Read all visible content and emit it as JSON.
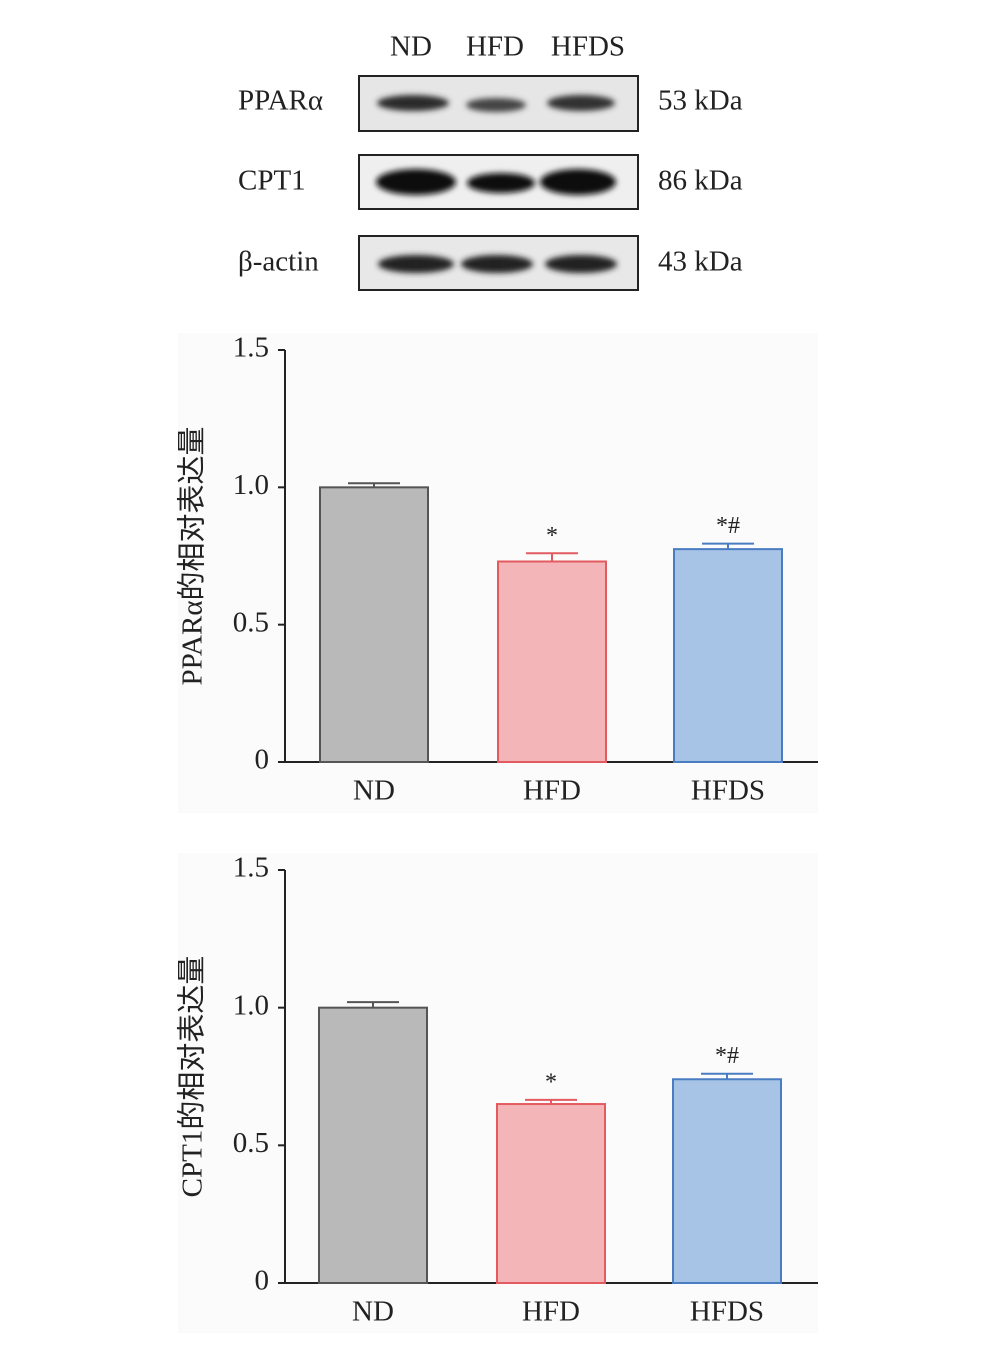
{
  "blot": {
    "lanes": [
      "ND",
      "HFD",
      "HFDS"
    ],
    "rows": [
      {
        "label": "PPARα",
        "size": "53 kDa"
      },
      {
        "label": "CPT1",
        "size": "86 kDa"
      },
      {
        "label": "β-actin",
        "size": "43 kDa"
      }
    ]
  },
  "chart_data": [
    {
      "type": "bar",
      "y_label": "PPARα的相对表达量",
      "categories": [
        "ND",
        "HFD",
        "HFDS"
      ],
      "series": [
        {
          "values": [
            1.0,
            0.73,
            0.775
          ],
          "errors": [
            0.015,
            0.03,
            0.02
          ],
          "colors": [
            "#b9b9b9",
            "#f4b5b8",
            "#a7c4e6"
          ],
          "edge_colors": [
            "#555555",
            "#e35b60",
            "#4a7cc2"
          ]
        }
      ],
      "annotations": [
        null,
        "*",
        "*#"
      ],
      "ylim": [
        0,
        1.5
      ],
      "yticks": [
        0,
        0.5,
        {
          "value": 1,
          "label": "1.0"
        },
        1.5
      ]
    },
    {
      "type": "bar",
      "y_label": "CPT1的相对表达量",
      "categories": [
        "ND",
        "HFD",
        "HFDS"
      ],
      "series": [
        {
          "values": [
            1.0,
            0.65,
            0.74
          ],
          "errors": [
            0.02,
            0.015,
            0.02
          ],
          "colors": [
            "#b9b9b9",
            "#f4b5b8",
            "#a7c4e6"
          ],
          "edge_colors": [
            "#555555",
            "#e35b60",
            "#4a7cc2"
          ]
        }
      ],
      "annotations": [
        null,
        "*",
        "*#"
      ],
      "ylim": [
        0,
        1.5
      ],
      "yticks": [
        0,
        0.5,
        {
          "value": 1,
          "label": "1.0"
        },
        1.5
      ]
    }
  ]
}
